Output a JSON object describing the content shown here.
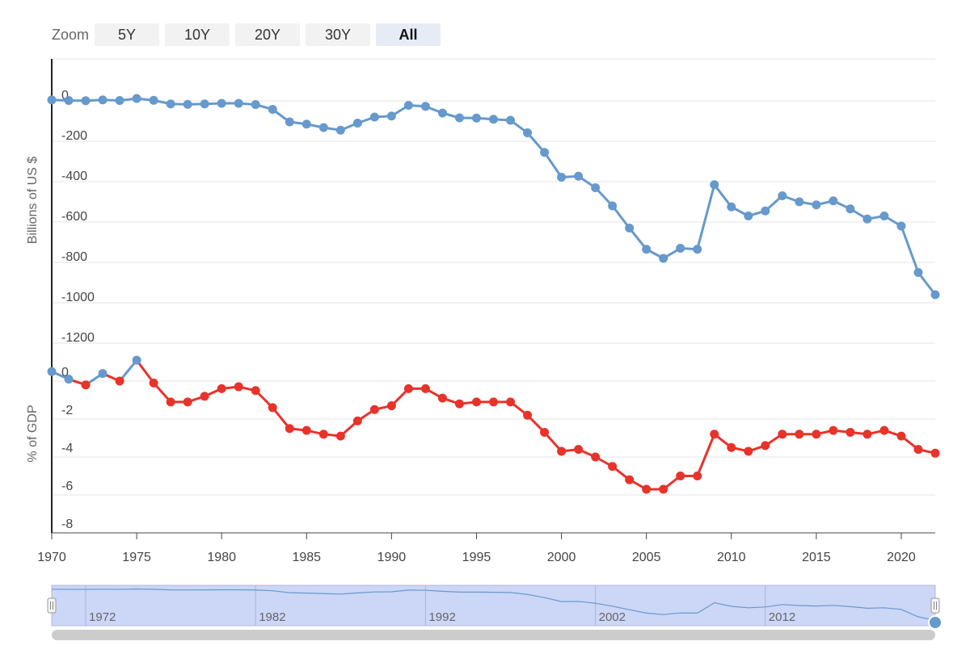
{
  "zoom": {
    "label": "Zoom",
    "buttons": [
      "5Y",
      "10Y",
      "20Y",
      "30Y",
      "All"
    ],
    "active": "All"
  },
  "colors": {
    "usd_line": "#6699cc",
    "gdp_line": "#e8332a",
    "navigator_fill": "#ccd6f7",
    "navigator_line": "#6699cc"
  },
  "chart_data": [
    {
      "type": "line",
      "title": "",
      "xlabel": "",
      "ylabel": "Billions of US $",
      "ylim": [
        -1200,
        0
      ],
      "yticks": [
        "0",
        "-200",
        "-400",
        "-600",
        "-800",
        "-1000",
        "-1200"
      ],
      "grid": true,
      "x": [
        1970,
        1971,
        1972,
        1973,
        1974,
        1975,
        1976,
        1977,
        1978,
        1979,
        1980,
        1981,
        1982,
        1983,
        1984,
        1985,
        1986,
        1987,
        1988,
        1989,
        1990,
        1991,
        1992,
        1993,
        1994,
        1995,
        1996,
        1997,
        1998,
        1999,
        2000,
        2001,
        2002,
        2003,
        2004,
        2005,
        2006,
        2007,
        2008,
        2009,
        2010,
        2011,
        2012,
        2013,
        2014,
        2015,
        2016,
        2017,
        2018,
        2019,
        2020,
        2021,
        2022
      ],
      "series": [
        {
          "name": "",
          "values": [
            5,
            2,
            1,
            5,
            2,
            12,
            3,
            -15,
            -17,
            -15,
            -12,
            -12,
            -18,
            -42,
            -104,
            -115,
            -132,
            -145,
            -110,
            -80,
            -75,
            -22,
            -27,
            -60,
            -84,
            -85,
            -91,
            -96,
            -158,
            -255,
            -378,
            -373,
            -430,
            -520,
            -630,
            -735,
            -780,
            -730,
            -735,
            -415,
            -525,
            -570,
            -545,
            -470,
            -500,
            -515,
            -495,
            -535,
            -585,
            -570,
            -620,
            -850,
            -960
          ]
        }
      ]
    },
    {
      "type": "line",
      "title": "",
      "xlabel": "",
      "ylabel": "% of GDP",
      "ylim": [
        -8,
        0
      ],
      "yticks": [
        "0",
        "-2",
        "-4",
        "-6",
        "-8"
      ],
      "xticks": [
        "1970",
        "1975",
        "1980",
        "1985",
        "1990",
        "1995",
        "2000",
        "2005",
        "2010",
        "2015",
        "2020"
      ],
      "grid": true,
      "x": [
        1970,
        1971,
        1972,
        1973,
        1974,
        1975,
        1976,
        1977,
        1978,
        1979,
        1980,
        1981,
        1982,
        1983,
        1984,
        1985,
        1986,
        1987,
        1988,
        1989,
        1990,
        1991,
        1992,
        1993,
        1994,
        1995,
        1996,
        1997,
        1998,
        1999,
        2000,
        2001,
        2002,
        2003,
        2004,
        2005,
        2006,
        2007,
        2008,
        2009,
        2010,
        2011,
        2012,
        2013,
        2014,
        2015,
        2016,
        2017,
        2018,
        2019,
        2020,
        2021,
        2022
      ],
      "series": [
        {
          "name": "",
          "values": [
            0.5,
            0.1,
            -0.2,
            0.4,
            0.0,
            1.1,
            -0.1,
            -1.1,
            -1.1,
            -0.8,
            -0.4,
            -0.3,
            -0.5,
            -1.4,
            -2.5,
            -2.6,
            -2.8,
            -2.9,
            -2.1,
            -1.5,
            -1.3,
            -0.4,
            -0.4,
            -0.9,
            -1.2,
            -1.1,
            -1.1,
            -1.1,
            -1.8,
            -2.7,
            -3.7,
            -3.6,
            -4.0,
            -4.5,
            -5.2,
            -5.7,
            -5.7,
            -5.0,
            -5.0,
            -2.8,
            -3.5,
            -3.7,
            -3.4,
            -2.8,
            -2.8,
            -2.8,
            -2.6,
            -2.7,
            -2.8,
            -2.6,
            -2.9,
            -3.6,
            -3.8
          ]
        }
      ]
    }
  ],
  "navigator": {
    "xticks": [
      "1972",
      "1982",
      "1992",
      "2002",
      "2012"
    ]
  }
}
